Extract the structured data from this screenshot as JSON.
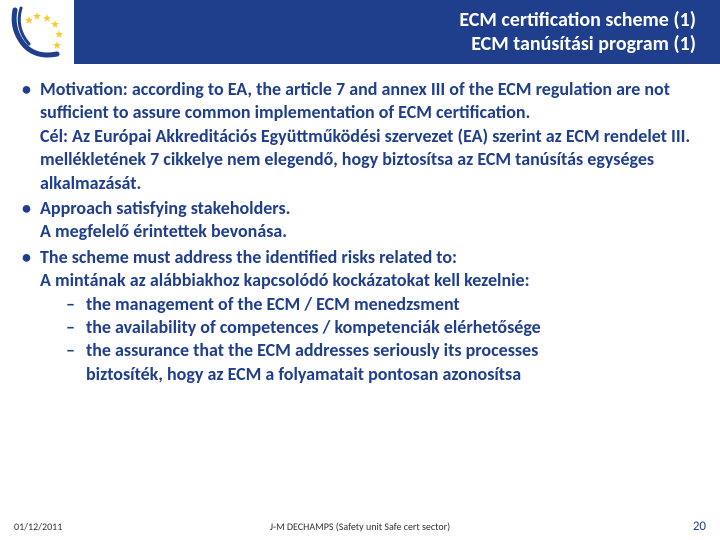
{
  "header": {
    "title_en": "ECM certification scheme (1)",
    "title_hu": "ECM tanúsítási program (1)",
    "bar_color": "#1f3e8c",
    "text_color": "#ffffff"
  },
  "logo": {
    "star_color": "#fec826",
    "arc_color": "#1f3e8c",
    "bg_color": "#ffffff"
  },
  "bullets": [
    {
      "text": "Motivation: according to EA, the article 7 and annex III of the ECM regulation are not sufficient to assure common implementation of ECM certification.\nCél: Az Európai Akkreditációs Együttműködési szervezet (EA) szerint az ECM rendelet III. mellékletének 7 cikkelye nem elegendő, hogy biztosítsa az ECM tanúsítás egységes alkalmazását."
    },
    {
      "text": "Approach satisfying stakeholders.\nA megfelelő érintettek bevonása."
    },
    {
      "text": "The scheme must address the identified risks related to:\nA mintának az alábbiakhoz kapcsolódó kockázatokat kell kezelnie:",
      "subs": [
        "the management of the ECM / ECM menedzsment",
        "the availability of competences / kompetenciák elérhetősége",
        "the assurance that the ECM addresses seriously its processes"
      ],
      "sub_tail": "biztosíték, hogy az ECM a folyamatait pontosan azonosítsa"
    }
  ],
  "footer": {
    "date": "01/12/2011",
    "center": "J-M DECHAMPS (Safety unit Safe cert sector)",
    "page": "20"
  },
  "styles": {
    "text_color": "#1f3e8c",
    "font_family": "Calibri"
  }
}
